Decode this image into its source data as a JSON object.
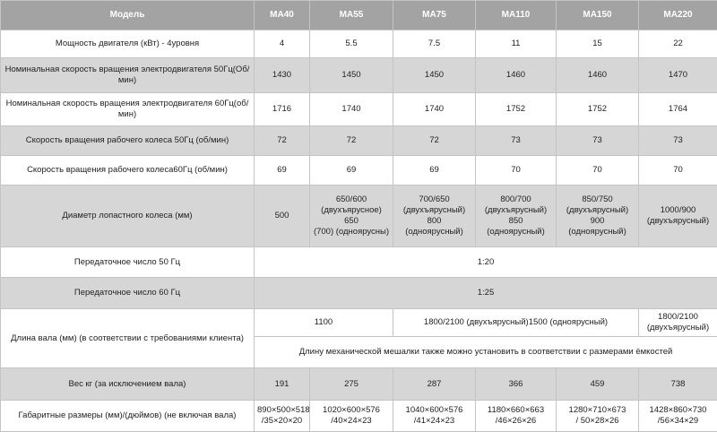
{
  "table": {
    "header": [
      "Модель",
      "MA40",
      "MA55",
      "MA75",
      "MA110",
      "MA150",
      "MA220"
    ],
    "rows": [
      {
        "label": "Мощность двигателя (кВт) - 4уровня",
        "cells": [
          "4",
          "5.5",
          "7.5",
          "11",
          "15",
          "22"
        ]
      },
      {
        "label": "Номинальная скорость вращения электродвигателя 50Гц(Об/мин)",
        "cells": [
          "1430",
          "1450",
          "1450",
          "1460",
          "1460",
          "1470"
        ]
      },
      {
        "label": "Номинальная скорость вращения электродвигателя 60Гц(об/мин)",
        "cells": [
          "1716",
          "1740",
          "1740",
          "1752",
          "1752",
          "1764"
        ]
      },
      {
        "label": "Скорость вращения рабочего колеса 50Гц (об/мин)",
        "cells": [
          "72",
          "72",
          "72",
          "73",
          "73",
          "73"
        ]
      },
      {
        "label": "Скорость вращения рабочего колеса60Гц (об/мин)",
        "cells": [
          "69",
          "69",
          "69",
          "70",
          "70",
          "70"
        ]
      },
      {
        "label": "Диаметр лопастного колеса  (мм)",
        "cells": [
          "500",
          "650/600\n(двухъярусное)\n650\n(700) (одноярусны)",
          "700/650\n(двухъярусный)\n800\n(одноярусный)",
          "800/700\n(двухъярусный)\n850\n(одноярусный)",
          "850/750\n(двухъярусный)\n900\n(одноярусный)",
          "1000/900\n(двухъярусный)"
        ]
      },
      {
        "label": "Передаточное число 50 Гц",
        "cells": [
          "1:20"
        ]
      },
      {
        "label": "Передаточное число 60 Гц",
        "cells": [
          "1:25"
        ]
      },
      {
        "label": "Длина вала (мм) (в соответствии с требованиями клиента)",
        "cells": [
          "1100",
          "1800/2100 (двухъярусный)1500 (одноярусный)",
          "1800/2100\n(двухъярусный)",
          "Длину механической мешалки также можно установить в соответствии с размерами ёмкостей"
        ]
      },
      {
        "label": "Вес кг (за исключением вала)",
        "cells": [
          "191",
          "275",
          "287",
          "366",
          "459",
          "738"
        ]
      },
      {
        "label": "Габаритные размеры (мм)/(дюймов) (не включая вала)",
        "cells": [
          "890×500×518\n/35×20×20",
          "1020×600×576\n/40×24×23",
          "1040×600×576\n/41×24×23",
          "1180×660×663\n/46×26×26",
          "1280×710×673\n/ 50×28×26",
          "1428×860×730\n/56×34×29"
        ]
      }
    ]
  }
}
